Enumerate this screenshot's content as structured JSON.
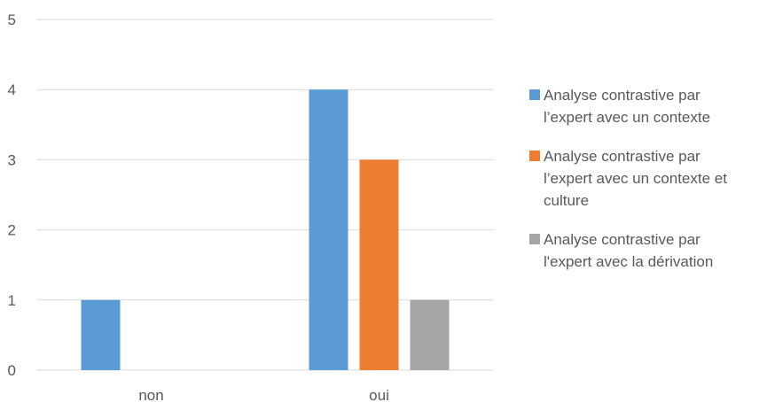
{
  "chart_data": {
    "type": "bar",
    "categories": [
      "non",
      "oui"
    ],
    "series": [
      {
        "name": "Analyse contrastive par l’expert avec un contexte",
        "values": [
          1,
          4
        ],
        "color": "#5b9bd5"
      },
      {
        "name": "Analyse contrastive par l’expert avec un contexte et culture",
        "values": [
          0,
          3
        ],
        "color": "#ed7d31"
      },
      {
        "name": "Analyse contrastive par l'expert avec la dérivation",
        "values": [
          0,
          1
        ],
        "color": "#a5a5a5"
      }
    ],
    "yticks": [
      "0",
      "1",
      "2",
      "3",
      "4",
      "5"
    ],
    "ylim": [
      0,
      5
    ],
    "grid": true,
    "legend_position": "right",
    "gridline_color": "#d9d9d9"
  },
  "legend": {
    "items": [
      {
        "lines": [
          "Analyse contrastive par",
          "l’expert avec un contexte"
        ]
      },
      {
        "lines": [
          "Analyse contrastive par",
          "l’expert avec un contexte et",
          "culture"
        ]
      },
      {
        "lines": [
          "Analyse contrastive par",
          "l'expert avec la dérivation"
        ]
      }
    ]
  }
}
